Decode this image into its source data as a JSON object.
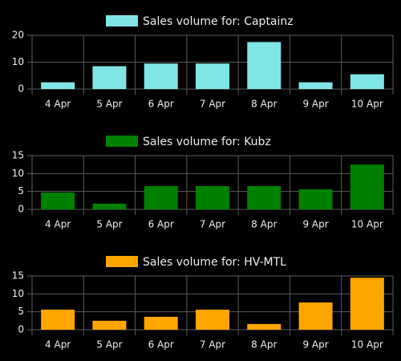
{
  "chart_data": [
    {
      "type": "bar",
      "categories": [
        "4 Apr",
        "5 Apr",
        "6 Apr",
        "7 Apr",
        "8 Apr",
        "9 Apr",
        "10 Apr"
      ],
      "series": [
        {
          "name": "Sales volume for: Captainz",
          "color": "#80e5e5",
          "values": [
            2.5,
            8.5,
            9.5,
            9.5,
            17.5,
            2.5,
            5.5
          ]
        }
      ],
      "ylim": [
        0,
        20
      ],
      "yticks": [
        0,
        10,
        20
      ],
      "grid": true,
      "legend": "top"
    },
    {
      "type": "bar",
      "categories": [
        "4 Apr",
        "5 Apr",
        "6 Apr",
        "7 Apr",
        "8 Apr",
        "9 Apr",
        "10 Apr"
      ],
      "series": [
        {
          "name": "Sales volume for: Kubz",
          "color": "#008000",
          "values": [
            4.7,
            1.6,
            6.5,
            6.5,
            6.5,
            5.6,
            12.5
          ]
        }
      ],
      "ylim": [
        0,
        15
      ],
      "yticks": [
        0,
        5,
        10,
        15
      ],
      "grid": true,
      "legend": "top"
    },
    {
      "type": "bar",
      "categories": [
        "4 Apr",
        "5 Apr",
        "6 Apr",
        "7 Apr",
        "8 Apr",
        "9 Apr",
        "10 Apr"
      ],
      "series": [
        {
          "name": "Sales volume for: HV-MTL",
          "color": "#ffa500",
          "values": [
            5.6,
            2.5,
            3.6,
            5.6,
            1.6,
            7.6,
            14.5
          ]
        }
      ],
      "ylim": [
        0,
        15
      ],
      "yticks": [
        0,
        5,
        10,
        15
      ],
      "grid": true,
      "legend": "top"
    }
  ]
}
